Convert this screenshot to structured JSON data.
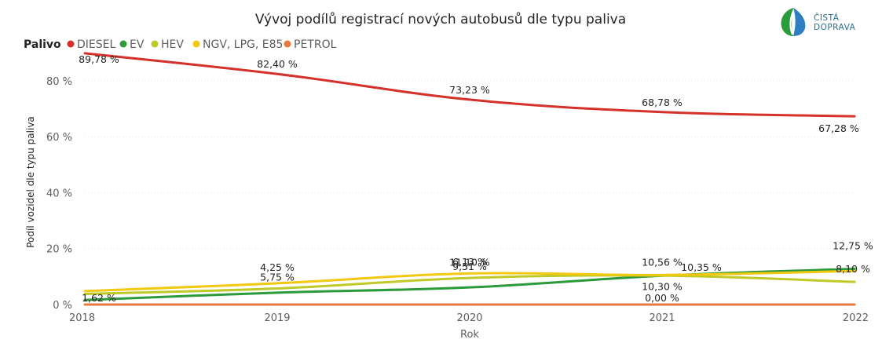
{
  "logo": {
    "line1": "ČISTÁ",
    "line2": "DOPRAVA"
  },
  "chart_data": {
    "type": "line",
    "title": "Vývoj podílů registrací nových autobusů dle typu paliva",
    "legend_title": "Palivo",
    "legend_position": "top-left",
    "xlabel": "Rok",
    "ylabel": "Podíl vozidel dle typu paliva",
    "x": [
      2018,
      2019,
      2020,
      2021,
      2022
    ],
    "ylim": [
      0,
      92
    ],
    "yticks": [
      0,
      20,
      40,
      60,
      80
    ],
    "ytick_labels": [
      "0 %",
      "20 %",
      "40 %",
      "60 %",
      "80 %"
    ],
    "grid": true,
    "series": [
      {
        "name": "DIESEL",
        "color": "#d4312b",
        "values": [
          89.78,
          82.4,
          73.23,
          68.78,
          67.28
        ],
        "labels": [
          "89,78 %",
          "82,40 %",
          "73,23 %",
          "68,78 %",
          "67,28 %"
        ]
      },
      {
        "name": "EV",
        "color": "#2b9a3a",
        "values": [
          1.62,
          4.25,
          6.13,
          10.3,
          12.75
        ],
        "labels": [
          "1,62 %",
          "4,25 %",
          "6,13 %",
          "10,30 %",
          "12,75 %"
        ]
      },
      {
        "name": "HEV",
        "color": "#bfc927",
        "values": [
          3.8,
          5.75,
          9.51,
          10.35,
          8.1
        ],
        "labels": [
          "",
          "5,75 %",
          "9,51 %",
          "10,35 %",
          "8,10 %"
        ]
      },
      {
        "name": "NGV, LPG, E85",
        "color": "#f2c811",
        "values": [
          4.8,
          7.6,
          11.1,
          10.56,
          12.0
        ],
        "labels": [
          "",
          "",
          "11,10 %",
          "10,56 %",
          ""
        ]
      },
      {
        "name": "PETROL",
        "color": "#e8793f",
        "values": [
          0.0,
          0.0,
          0.0,
          0.0,
          0.0
        ],
        "labels": [
          "",
          "",
          "",
          "0,00 %",
          ""
        ]
      }
    ]
  }
}
